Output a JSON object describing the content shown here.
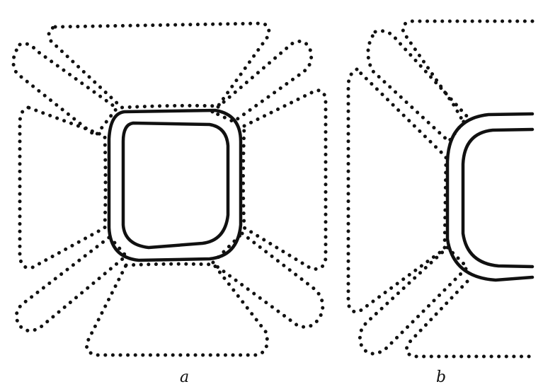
{
  "figures": [
    {
      "id": "a",
      "label": "a"
    },
    {
      "id": "b",
      "label": "b"
    }
  ],
  "colors": {
    "ink": "#111111",
    "paper": "#ffffff"
  }
}
